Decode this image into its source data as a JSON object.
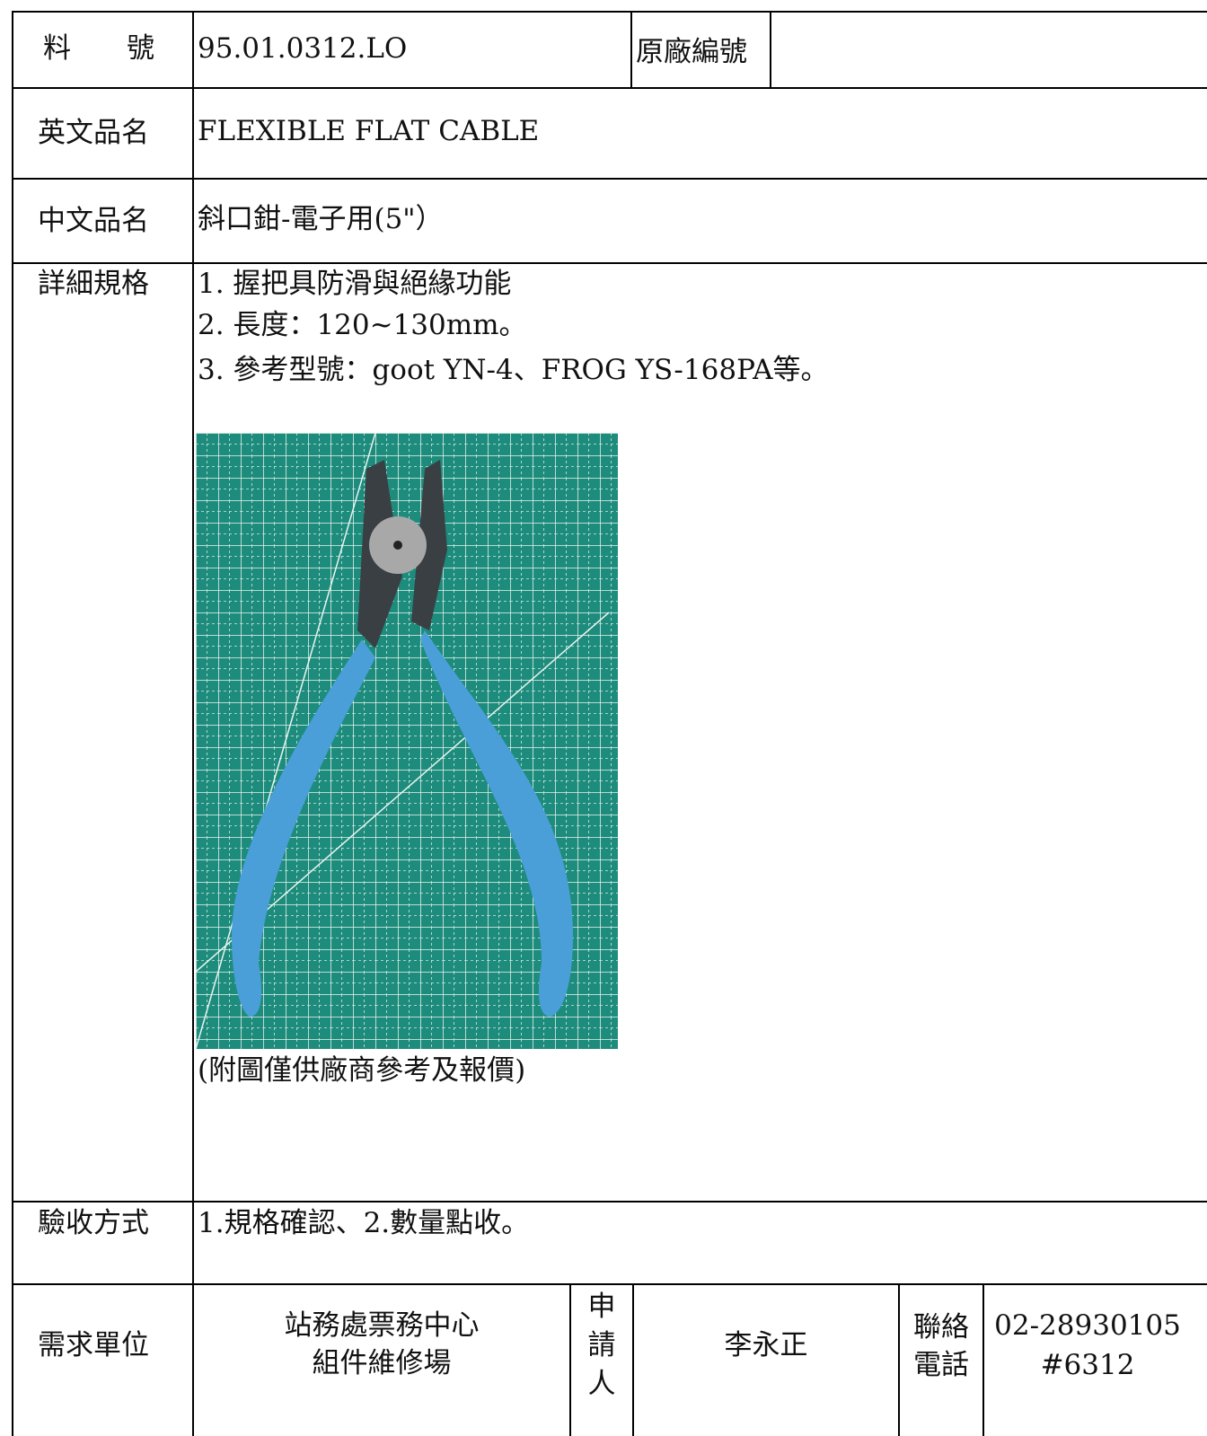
{
  "part_no": {
    "label": "料　　號",
    "value": "95.01.0312.LO"
  },
  "original_no": {
    "label": "原廠編號"
  },
  "english_name": {
    "label": "英文品名",
    "value": "FLEXIBLE FLAT CABLE"
  },
  "chinese_name": {
    "label": "中文品名",
    "value": "斜口鉗-電子用(5\"）"
  },
  "specs": {
    "label": "詳細規格",
    "lines": [
      "1. 握把具防滑與絕緣功能",
      "2. 長度：120~130mm。",
      "3. 參考型號：goot YN-4、FROG YS-168PA等。"
    ],
    "image_note": "(附圖僅供廠商參考及報價)"
  },
  "acceptance": {
    "label": "驗收方式",
    "value": "1.規格確認、2.數量點收。"
  },
  "requester": {
    "unit_label": "需求單位",
    "unit": [
      "站務處票務中心",
      "組件維修場"
    ],
    "applicant_label": "申請人",
    "applicant": "李永正",
    "contact_label": "聯絡電話",
    "contact": [
      "02-28930105",
      "#6312"
    ]
  }
}
